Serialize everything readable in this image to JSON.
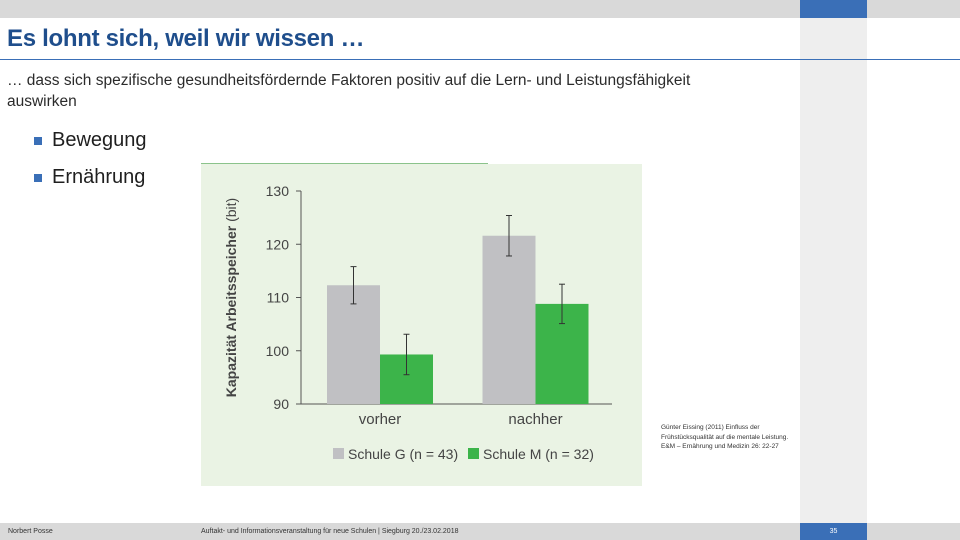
{
  "slide": {
    "title": "Es lohnt sich, weil wir wissen …",
    "subtitle": "… dass sich spezifische gesundheitsfördernde Faktoren positiv auf die Lern- und Leistungsfähigkeit auswirken",
    "bullets": [
      "Bewegung",
      "Ernährung"
    ],
    "citation": "Günter Eissing (2011) Einfluss der Frühstücksqualität auf die mentale Leistung. E&M – Ernährung und Medizin 26: 22-27",
    "colors": {
      "accent": "#3a6fb7",
      "chart_bg": "#eaf3e4",
      "series_g": "#c0c0c3",
      "series_m": "#3cb44a"
    }
  },
  "footer": {
    "author": "Norbert Posse",
    "event": "Auftakt- und Informationsveranstaltung für neue Schulen | Siegburg 20./23.02.2018",
    "page": "35"
  },
  "chart_data": {
    "type": "bar",
    "ylabel_bold": "Kapazität Arbeitsspeicher",
    "ylabel_unit": "(bit)",
    "categories": [
      "vorher",
      "nachher"
    ],
    "ylim": [
      90,
      130
    ],
    "yticks": [
      90,
      100,
      110,
      120,
      130
    ],
    "series": [
      {
        "name": "Schule G (n = 43)",
        "color": "#c0c0c3",
        "values": [
          112.3,
          121.6
        ],
        "error": [
          3.5,
          3.8
        ]
      },
      {
        "name": "Schule M (n = 32)",
        "color": "#3cb44a",
        "values": [
          99.3,
          108.8
        ],
        "error": [
          3.8,
          3.7
        ]
      }
    ],
    "grid": false,
    "legend_position": "bottom"
  }
}
